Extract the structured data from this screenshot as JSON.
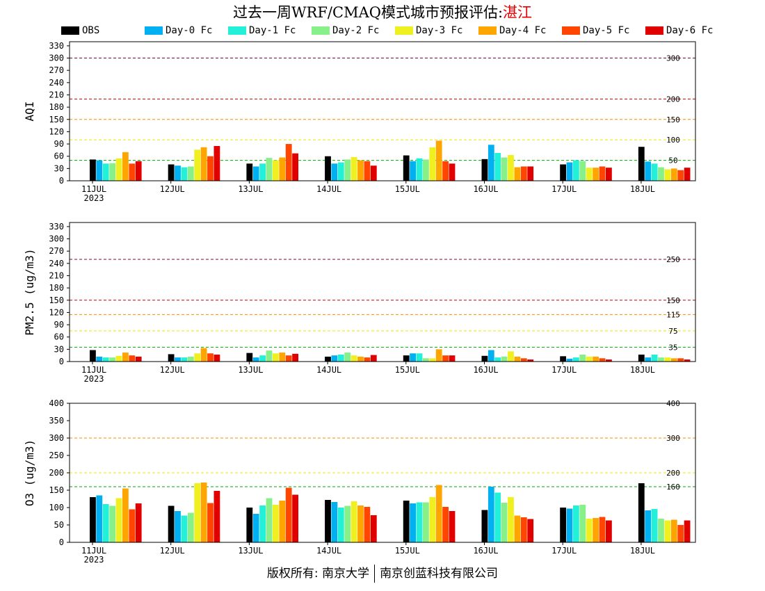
{
  "header": {
    "title": "过去一周WRF/CMAQ模式城市预报评估:",
    "city": "湛江"
  },
  "legend": [
    {
      "label": "OBS",
      "color": "#000000"
    },
    {
      "label": "Day-0 Fc",
      "color": "#00b0f0"
    },
    {
      "label": "Day-1 Fc",
      "color": "#22f0d8"
    },
    {
      "label": "Day-2 Fc",
      "color": "#88f088"
    },
    {
      "label": "Day-3 Fc",
      "color": "#f0f020"
    },
    {
      "label": "Day-4 Fc",
      "color": "#ffa500"
    },
    {
      "label": "Day-5 Fc",
      "color": "#ff4500"
    },
    {
      "label": "Day-6 Fc",
      "color": "#e00000"
    }
  ],
  "footer": {
    "left": "版权所有: 南京大学",
    "right": "南京创蓝科技有限公司"
  },
  "chart_data": [
    {
      "type": "bar",
      "ylabel": "AQI",
      "ylim": [
        0,
        340
      ],
      "yticks": [
        0,
        30,
        60,
        90,
        120,
        150,
        180,
        210,
        240,
        270,
        300,
        330
      ],
      "thresholds": [
        {
          "value": 50,
          "label": "50",
          "color": "#00aa00"
        },
        {
          "value": 100,
          "label": "100",
          "color": "#e8e800"
        },
        {
          "value": 150,
          "label": "150",
          "color": "#ff8800"
        },
        {
          "value": 200,
          "label": "200",
          "color": "#cc0000"
        },
        {
          "value": 300,
          "label": "300",
          "color": "#800040"
        }
      ],
      "categories": [
        "11JUL",
        "12JUL",
        "13JUL",
        "14JUL",
        "15JUL",
        "16JUL",
        "17JUL",
        "18JUL"
      ],
      "year_label": "2023",
      "series": [
        {
          "name": "OBS",
          "values": [
            52,
            40,
            42,
            60,
            62,
            53,
            40,
            83
          ]
        },
        {
          "name": "Day-0 Fc",
          "values": [
            50,
            37,
            35,
            42,
            48,
            88,
            45,
            47
          ]
        },
        {
          "name": "Day-1 Fc",
          "values": [
            42,
            33,
            42,
            45,
            55,
            68,
            50,
            42
          ]
        },
        {
          "name": "Day-2 Fc",
          "values": [
            43,
            35,
            56,
            52,
            52,
            57,
            48,
            33
          ]
        },
        {
          "name": "Day-3 Fc",
          "values": [
            55,
            76,
            50,
            58,
            82,
            63,
            32,
            28
          ]
        },
        {
          "name": "Day-4 Fc",
          "values": [
            70,
            82,
            57,
            50,
            98,
            33,
            32,
            30
          ]
        },
        {
          "name": "Day-5 Fc",
          "values": [
            42,
            60,
            90,
            48,
            48,
            35,
            35,
            26
          ]
        },
        {
          "name": "Day-6 Fc",
          "values": [
            48,
            85,
            67,
            37,
            42,
            35,
            32,
            32
          ]
        }
      ]
    },
    {
      "type": "bar",
      "ylabel": "PM2.5 (ug/m3)",
      "ylim": [
        0,
        340
      ],
      "yticks": [
        0,
        30,
        60,
        90,
        120,
        150,
        180,
        210,
        240,
        270,
        300,
        330
      ],
      "thresholds": [
        {
          "value": 35,
          "label": "35",
          "color": "#00aa00"
        },
        {
          "value": 75,
          "label": "75",
          "color": "#e8e800"
        },
        {
          "value": 115,
          "label": "115",
          "color": "#ff8800"
        },
        {
          "value": 150,
          "label": "150",
          "color": "#cc0000"
        },
        {
          "value": 250,
          "label": "250",
          "color": "#800040"
        }
      ],
      "categories": [
        "11JUL",
        "12JUL",
        "13JUL",
        "14JUL",
        "15JUL",
        "16JUL",
        "17JUL",
        "18JUL"
      ],
      "year_label": "2023",
      "series": [
        {
          "name": "OBS",
          "values": [
            28,
            18,
            21,
            12,
            15,
            14,
            13,
            17
          ]
        },
        {
          "name": "Day-0 Fc",
          "values": [
            12,
            10,
            10,
            15,
            20,
            28,
            7,
            10
          ]
        },
        {
          "name": "Day-1 Fc",
          "values": [
            10,
            10,
            15,
            17,
            20,
            10,
            10,
            17
          ]
        },
        {
          "name": "Day-2 Fc",
          "values": [
            10,
            12,
            27,
            22,
            8,
            12,
            17,
            10
          ]
        },
        {
          "name": "Day-3 Fc",
          "values": [
            14,
            20,
            20,
            15,
            8,
            25,
            12,
            10
          ]
        },
        {
          "name": "Day-4 Fc",
          "values": [
            22,
            33,
            22,
            12,
            30,
            12,
            12,
            8
          ]
        },
        {
          "name": "Day-5 Fc",
          "values": [
            15,
            20,
            15,
            10,
            15,
            8,
            8,
            8
          ]
        },
        {
          "name": "Day-6 Fc",
          "values": [
            12,
            17,
            19,
            16,
            15,
            5,
            5,
            5
          ]
        }
      ]
    },
    {
      "type": "bar",
      "ylabel": "O3 (ug/m3)",
      "ylim": [
        0,
        400
      ],
      "yticks": [
        0,
        50,
        100,
        150,
        200,
        250,
        300,
        350,
        400
      ],
      "thresholds": [
        {
          "value": 160,
          "label": "160",
          "color": "#00aa00"
        },
        {
          "value": 200,
          "label": "200",
          "color": "#e8e800"
        },
        {
          "value": 300,
          "label": "300",
          "color": "#ff8800"
        },
        {
          "value": 400,
          "label": "400",
          "color": "#cc0000"
        }
      ],
      "categories": [
        "11JUL",
        "12JUL",
        "13JUL",
        "14JUL",
        "15JUL",
        "16JUL",
        "17JUL",
        "18JUL"
      ],
      "year_label": "2023",
      "series": [
        {
          "name": "OBS",
          "values": [
            130,
            105,
            100,
            122,
            120,
            93,
            100,
            170
          ]
        },
        {
          "name": "Day-0 Fc",
          "values": [
            135,
            90,
            82,
            116,
            112,
            160,
            97,
            92
          ]
        },
        {
          "name": "Day-1 Fc",
          "values": [
            110,
            77,
            106,
            100,
            115,
            143,
            106,
            96
          ]
        },
        {
          "name": "Day-2 Fc",
          "values": [
            105,
            85,
            127,
            105,
            115,
            114,
            108,
            68
          ]
        },
        {
          "name": "Day-3 Fc",
          "values": [
            127,
            170,
            108,
            118,
            130,
            130,
            68,
            63
          ]
        },
        {
          "name": "Day-4 Fc",
          "values": [
            155,
            172,
            120,
            106,
            165,
            77,
            70,
            65
          ]
        },
        {
          "name": "Day-5 Fc",
          "values": [
            95,
            113,
            157,
            102,
            102,
            72,
            73,
            50
          ]
        },
        {
          "name": "Day-6 Fc",
          "values": [
            112,
            148,
            137,
            78,
            90,
            67,
            63,
            63
          ]
        }
      ]
    }
  ]
}
